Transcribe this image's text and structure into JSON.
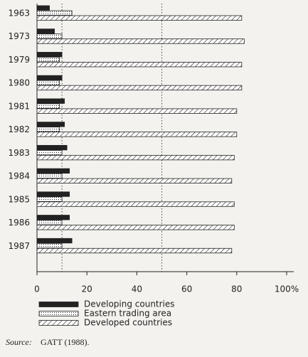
{
  "chart_data": {
    "type": "hbar",
    "categories": [
      "1963",
      "1973",
      "1979",
      "1980",
      "1981",
      "1982",
      "1983",
      "1984",
      "1985",
      "1986",
      "1987"
    ],
    "series": [
      {
        "name": "Developing countries",
        "color": "#222",
        "fill": "solid",
        "values": [
          5,
          7,
          10,
          10,
          11,
          11,
          12,
          13,
          13,
          13,
          14
        ]
      },
      {
        "name": "Eastern trading area",
        "color": "#222",
        "fill": "dots",
        "values": [
          14,
          10,
          9,
          9,
          9,
          9,
          10,
          10,
          10,
          10,
          10
        ]
      },
      {
        "name": "Developed countries",
        "color": "#222",
        "fill": "hatch",
        "values": [
          82,
          83,
          82,
          82,
          80,
          80,
          79,
          78,
          79,
          79,
          78
        ]
      }
    ],
    "xlim": [
      0,
      100
    ],
    "xticks": [
      0,
      20,
      40,
      60,
      80,
      {
        "value": 100,
        "label": "100%"
      }
    ],
    "reference_lines": [
      10,
      50
    ],
    "source_label": "Source:",
    "source": "GATT (1988)."
  }
}
